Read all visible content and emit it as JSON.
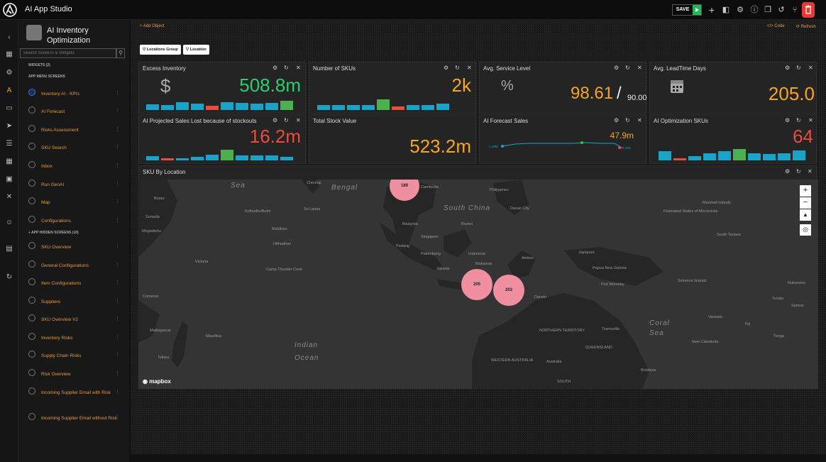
{
  "app": {
    "title": "AI App Studio",
    "save_label": "SAVE"
  },
  "sidebar": {
    "title": "AI Inventory Optimization",
    "search_placeholder": "Search Screens & Widgets",
    "widgets_label": "WIDGETS (2)",
    "app_menu_label": "APP MENU SCREENS",
    "hidden_label": "+ APP HIDDEN SCREENS (10)",
    "menu": [
      "Inventory AI - KPIs",
      "AI Forecast",
      "Risks Assessment",
      "SKU Search",
      "Inbox",
      "Run GenAI",
      "Map",
      "Configurations"
    ],
    "hidden": [
      "SKU Overview",
      "General Configurations",
      "Item Configurations",
      "Suppliers",
      "SKU Overview V2",
      "Inventory Risks",
      "Supply Chain Risks",
      "Risk Overview",
      "Incoming Supplier Email with Risk",
      "Incoming Supplier Email without Risk"
    ]
  },
  "toolbar": {
    "add_object": "+ Add Object",
    "code": "</> Code",
    "refresh": "⟳ Refresh"
  },
  "filters": [
    "Locations Group",
    "Location"
  ],
  "kpis": {
    "excess": {
      "title": "Excess Inventory",
      "value": "508.8m",
      "icon": "dollar-icon",
      "color": "#2ecc71"
    },
    "skus": {
      "title": "Number of SKUs",
      "value": "2k",
      "color": "#f5a623"
    },
    "service": {
      "title": "Avg. Service Level",
      "value": "98.61",
      "slash": "/",
      "target": "90.00",
      "icon": "percent-icon",
      "color": "#f5a623"
    },
    "leadtime": {
      "title": "Avg. LeadTime Days",
      "value": "205.0",
      "icon": "calendar-icon",
      "color": "#f5a623"
    },
    "lost": {
      "title": "AI Projected Sales Lost because of stockouts",
      "value": "16.2m",
      "color": "#e74c3c"
    },
    "stock": {
      "title": "Total Stock Value",
      "value": "523.2m",
      "color": "#f5a623"
    },
    "forecast": {
      "title": "AI Forecast Sales",
      "value": "47.9m",
      "start": "1.19M",
      "end": "670.72K",
      "color": "#f5a623"
    },
    "optsku": {
      "title": "AI Optimization SKUs",
      "value": "64",
      "color": "#e74c3c"
    }
  },
  "map": {
    "title": "SKU By Location",
    "brand": "mapbox",
    "clusters": [
      "189",
      "205",
      "203"
    ],
    "places": [
      "Sea",
      "Bengal",
      "Chennai",
      "Burao",
      "Somalia",
      "Mogadishu",
      "Kulhudhuffushi",
      "Sri Lanka",
      "Maldives",
      "Hithadhoo",
      "Victoria",
      "Camp Thunder Cove",
      "Comoros",
      "Madagascar",
      "Mauritius",
      "Toliara",
      "Indian",
      "Ocean",
      "Cambodia",
      "Philippines",
      "Davao City",
      "Malaysia",
      "Singapore",
      "Brunei",
      "Padang",
      "Palembang",
      "Indonesia",
      "Makassar",
      "Ambon",
      "Jakarta",
      "Jayapura",
      "Papua New Guinea",
      "Port Moresby",
      "Solomon Islands",
      "Darwin",
      "NORTHERN TERRITORY",
      "QUEENSLAND",
      "WESTERN AUSTRALIA",
      "Australia",
      "SOUTH",
      "Townsville",
      "Coral",
      "Sea",
      "Brisbane",
      "Federated States of Micronesia",
      "Marshall Islands",
      "South Tarawa",
      "Nukunonu",
      "Tuvalu",
      "Samoa",
      "Fiji",
      "Tonga",
      "Vanuatu",
      "New Caledonia",
      "South China"
    ]
  }
}
